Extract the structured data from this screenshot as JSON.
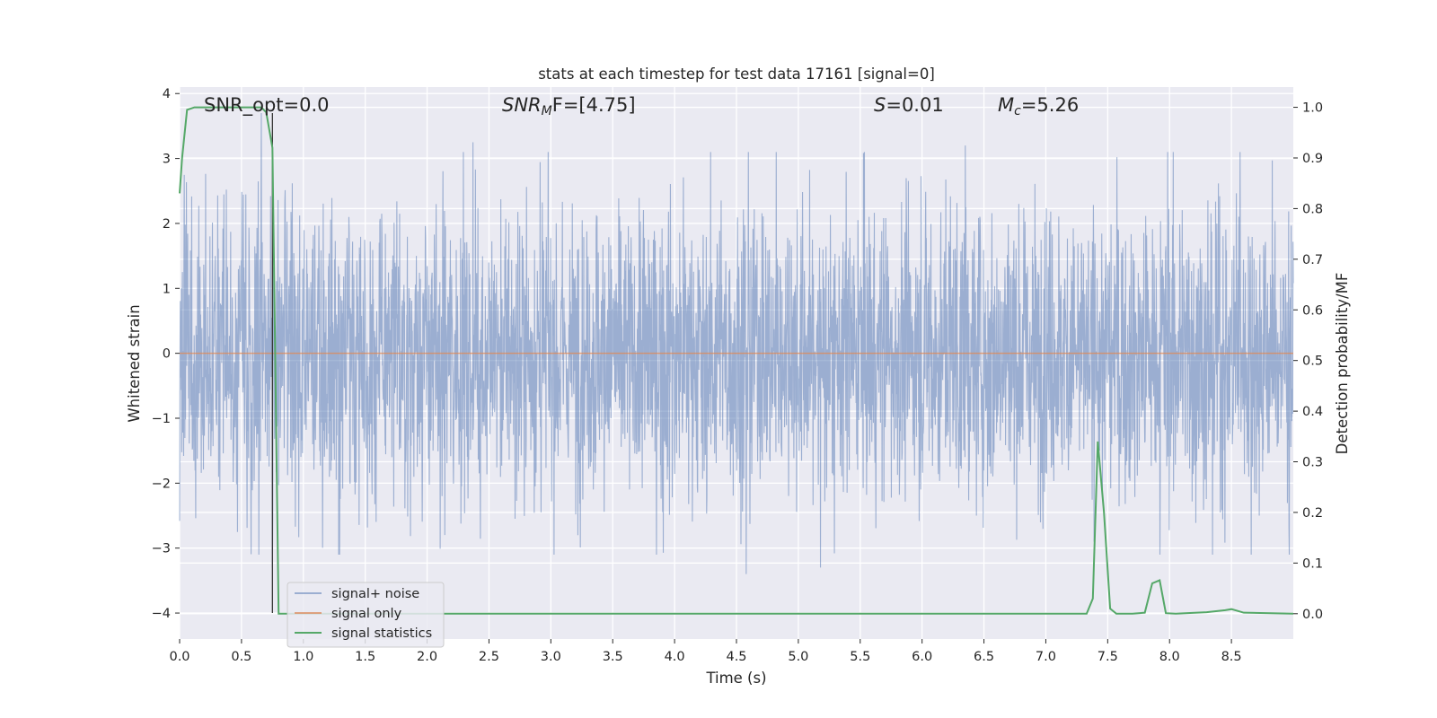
{
  "chart_data": {
    "type": "line",
    "title": "stats at each timestep for test data 17161 [signal=0]",
    "xlabel": "Time (s)",
    "ylabel_left": "Whitened strain",
    "ylabel_right": "Detection probability/MF",
    "xlim": [
      0.0,
      9.0
    ],
    "ylim_left": [
      -4.4,
      4.1
    ],
    "ylim_right": [
      -0.05,
      1.04
    ],
    "x_ticks": [
      "0.0",
      "0.5",
      "1.0",
      "1.5",
      "2.0",
      "2.5",
      "3.0",
      "3.5",
      "4.0",
      "4.5",
      "5.0",
      "5.5",
      "6.0",
      "6.5",
      "7.0",
      "7.5",
      "8.0",
      "8.5"
    ],
    "y_left_ticks": [
      "4",
      "3",
      "2",
      "1",
      "0",
      "−1",
      "−2",
      "−3",
      "−4"
    ],
    "y_right_ticks": [
      "1.0",
      "0.9",
      "0.8",
      "0.7",
      "0.6",
      "0.5",
      "0.4",
      "0.3",
      "0.2",
      "0.1",
      "0.0"
    ],
    "grid": true,
    "legend_position": "lower-left",
    "annotations": {
      "snr_opt": "SNR_opt=0.0",
      "snr_mf_base": "SNR",
      "snr_mf_sub": "M",
      "snr_mf_tail": "F=[4.75]",
      "s_var": "S",
      "s_val": "=0.01",
      "mc_base": "M",
      "mc_sub": "c",
      "mc_val": "=5.26"
    },
    "colors": {
      "background": "#eaeaf2",
      "grid": "#ffffff",
      "signal_noise": "#4c72b0",
      "signal_only": "#dd8452",
      "signal_statistics": "#55a868",
      "marker_line": "#333333"
    },
    "series": [
      {
        "name": "signal+ noise",
        "axis": "left",
        "kind": "whitened noise, amplitude within approx [-3.4, 3.7]",
        "extremes": [
          [
            0.66,
            3.7
          ],
          [
            0.75,
            -3.3
          ],
          [
            4.58,
            -3.4
          ],
          [
            5.18,
            -3.3
          ],
          [
            7.39,
            -2.9
          ],
          [
            2.37,
            3.25
          ],
          [
            6.35,
            3.2
          ],
          [
            8.57,
            3.1
          ]
        ]
      },
      {
        "name": "signal only",
        "axis": "left",
        "x": [
          0.0,
          9.0
        ],
        "y": [
          0.0,
          0.0
        ]
      },
      {
        "name": "signal statistics",
        "axis": "right",
        "x": [
          0.0,
          0.02,
          0.06,
          0.12,
          0.3,
          0.5,
          0.66,
          0.7,
          0.75,
          0.8,
          1.0,
          1.5,
          2.0,
          2.5,
          3.0,
          4.0,
          5.0,
          6.0,
          7.0,
          7.33,
          7.38,
          7.42,
          7.47,
          7.52,
          7.57,
          7.7,
          7.8,
          7.86,
          7.92,
          7.97,
          8.05,
          8.3,
          8.45,
          8.5,
          8.6,
          9.0
        ],
        "y": [
          0.83,
          0.9,
          0.995,
          1.0,
          1.0,
          1.0,
          1.0,
          0.99,
          0.92,
          0.0,
          0.0,
          0.0,
          0.0,
          0.0,
          0.0,
          0.0,
          0.0,
          0.0,
          0.0,
          0.0,
          0.03,
          0.34,
          0.2,
          0.01,
          0.0,
          0.0,
          0.002,
          0.06,
          0.066,
          0.001,
          0.0,
          0.003,
          0.007,
          0.009,
          0.002,
          0.0
        ]
      }
    ],
    "marker_x": [
      0.75
    ]
  }
}
